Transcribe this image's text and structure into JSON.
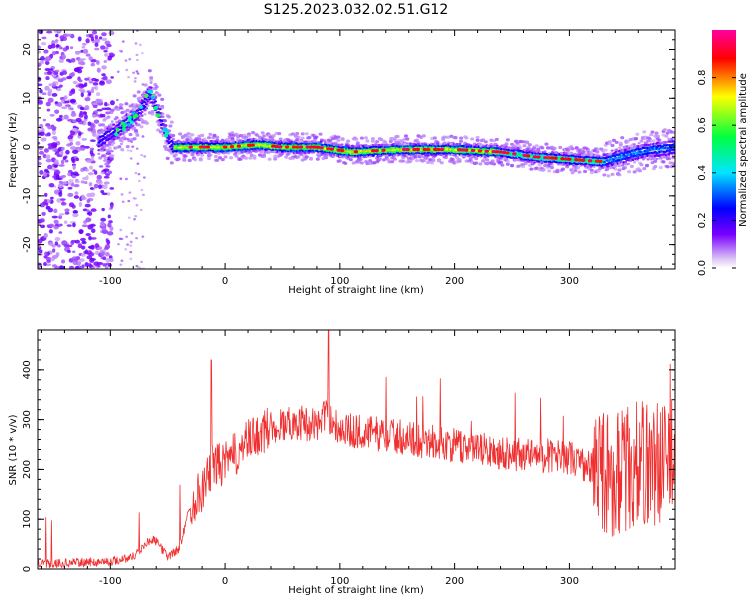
{
  "figure": {
    "title": "S125.2023.032.02.51.G12"
  },
  "chart_data": [
    {
      "type": "heatmap",
      "xlabel": "Height of straight line (km)",
      "ylabel": "Frequency (Hz)",
      "xlim": [
        -163,
        392
      ],
      "ylim": [
        -25,
        24
      ],
      "x_ticks": [
        -100,
        0,
        100,
        200,
        300
      ],
      "y_ticks": [
        -20,
        -10,
        0,
        10,
        20
      ],
      "colorbar": {
        "label": "Normalized spectral amplitude",
        "range": [
          0,
          1
        ],
        "ticks": [
          0,
          0.2,
          0.4,
          0.6,
          0.8
        ],
        "colormap": [
          "#ffffff",
          "#d9c2f5",
          "#7b00ff",
          "#0000ff",
          "#00e5ff",
          "#00ff40",
          "#ffff00",
          "#ff0000",
          "#ff00a0"
        ]
      },
      "ridge": {
        "x": [
          -110,
          -85,
          -75,
          -65,
          -58,
          -50,
          -45,
          -30,
          0,
          30,
          50,
          80,
          110,
          150,
          200,
          240,
          270,
          300,
          330,
          360,
          392
        ],
        "y": [
          1,
          5,
          7,
          11,
          7,
          2,
          0,
          0,
          0,
          0.5,
          0,
          0,
          -1,
          -0.5,
          -0.5,
          -1,
          -2,
          -2.5,
          -3,
          -1,
          0
        ]
      }
    },
    {
      "type": "line",
      "xlabel": "Height of straight line (km)",
      "ylabel": "SNR (10 * v/v)",
      "xlim": [
        -163,
        392
      ],
      "ylim": [
        0,
        480
      ],
      "x_ticks": [
        -100,
        0,
        100,
        200,
        300
      ],
      "y_ticks": [
        0,
        100,
        200,
        300,
        400
      ],
      "color": "#f03030",
      "envelope": {
        "x": [
          -163,
          -100,
          -80,
          -65,
          -60,
          -50,
          -40,
          -30,
          -20,
          -10,
          0,
          20,
          40,
          60,
          80,
          90,
          100,
          140,
          180,
          220,
          260,
          300,
          320,
          340,
          360,
          392
        ],
        "y": [
          10,
          15,
          25,
          60,
          55,
          25,
          40,
          130,
          160,
          210,
          210,
          255,
          285,
          295,
          290,
          310,
          280,
          270,
          255,
          240,
          230,
          225,
          200,
          190,
          210,
          220
        ]
      }
    }
  ]
}
